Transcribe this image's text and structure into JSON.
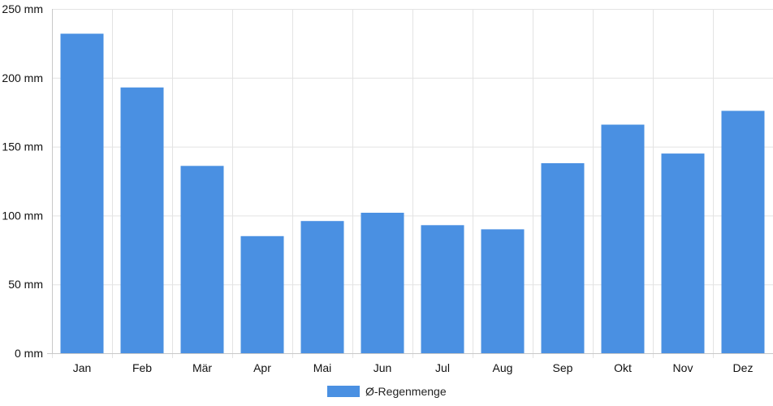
{
  "chart_data": {
    "type": "bar",
    "categories": [
      "Jan",
      "Feb",
      "Mär",
      "Apr",
      "Mai",
      "Jun",
      "Jul",
      "Aug",
      "Sep",
      "Okt",
      "Nov",
      "Dez"
    ],
    "series": [
      {
        "name": "Ø-Regenmenge",
        "values": [
          232,
          193,
          136,
          85,
          96,
          102,
          93,
          90,
          138,
          166,
          145,
          176
        ],
        "color": "#4a90e2"
      }
    ],
    "y_ticks": [
      "0 mm",
      "50 mm",
      "100 mm",
      "150 mm",
      "200 mm",
      "250 mm"
    ],
    "ylim": [
      0,
      250
    ],
    "y_unit": "mm",
    "title": "",
    "xlabel": "",
    "ylabel": "",
    "grid": true,
    "legend_position": "bottom-center"
  },
  "colors": {
    "bar": "#4a90e2",
    "grid": "#e3e3e3",
    "axis": "#c8c8c8"
  }
}
